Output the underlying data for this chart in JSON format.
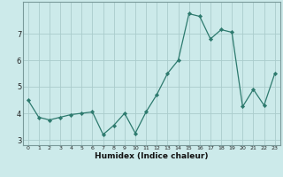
{
  "x": [
    0,
    1,
    2,
    3,
    4,
    5,
    6,
    7,
    8,
    9,
    10,
    11,
    12,
    13,
    14,
    15,
    16,
    17,
    18,
    19,
    20,
    21,
    22,
    23
  ],
  "y": [
    4.5,
    3.85,
    3.75,
    3.85,
    3.95,
    4.0,
    4.05,
    3.2,
    3.55,
    4.0,
    3.25,
    4.05,
    4.7,
    5.5,
    6.0,
    7.75,
    7.65,
    6.8,
    7.15,
    7.05,
    4.25,
    4.9,
    4.3,
    5.5
  ],
  "xlim": [
    -0.5,
    23.5
  ],
  "ylim": [
    2.8,
    8.2
  ],
  "yticks": [
    3,
    4,
    5,
    6,
    7
  ],
  "xticks": [
    0,
    1,
    2,
    3,
    4,
    5,
    6,
    7,
    8,
    9,
    10,
    11,
    12,
    13,
    14,
    15,
    16,
    17,
    18,
    19,
    20,
    21,
    22,
    23
  ],
  "xlabel": "Humidex (Indice chaleur)",
  "line_color": "#2d7a6e",
  "marker_color": "#2d7a6e",
  "bg_color": "#cceaea",
  "grid_color": "#aacccc",
  "axis_color": "#7a9a9a",
  "tick_label_color": "#222222",
  "xlabel_color": "#111111"
}
